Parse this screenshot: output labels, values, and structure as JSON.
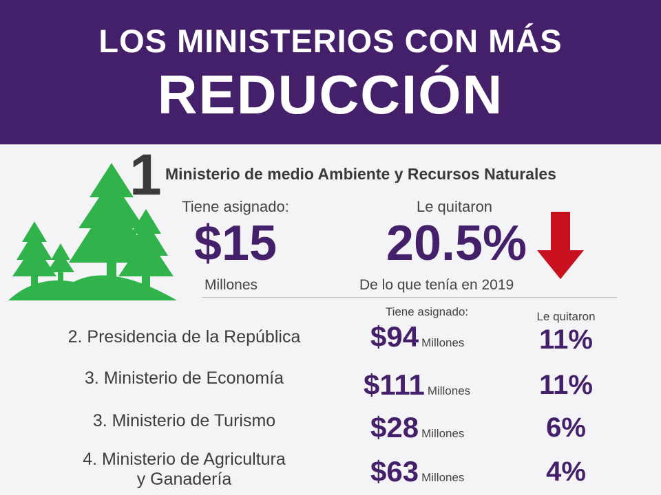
{
  "header": {
    "line1": "LOS MINISTERIOS CON MÁS",
    "line2": "REDUCCIÓN"
  },
  "first": {
    "rank": "1",
    "name": "Ministerio de medio Ambiente y Recursos Naturales",
    "assigned_label": "Tiene asignado:",
    "amount": "$15",
    "unit": "Millones",
    "cut_label": "Le quitaron",
    "percent": "20.5%",
    "cut_note": "De lo que tenía en 2019",
    "icon": "trees-icon",
    "arrow_icon": "arrow-down-icon"
  },
  "columns": {
    "assigned": "Tiene asignado:",
    "cut": "Le quitaron"
  },
  "rows": [
    {
      "name": "2. Presidencia de la República",
      "amount": "$94",
      "unit": "Millones",
      "percent": "11%"
    },
    {
      "name": "3. Ministerio de Economía",
      "amount": "$111",
      "unit": "Millones",
      "percent": "11%"
    },
    {
      "name": "3. Ministerio de Turismo",
      "amount": "$28",
      "unit": "Millones",
      "percent": "6%"
    },
    {
      "name_line1": "4. Ministerio de Agricultura",
      "name_line2": "y Ganadería",
      "amount": "$63",
      "unit": "Millones",
      "percent": "4%"
    }
  ],
  "colors": {
    "header": "#45206a",
    "accent": "#45206a",
    "tree": "#2fb34a",
    "arrow": "#c8101e",
    "background": "#f4f4f6"
  }
}
